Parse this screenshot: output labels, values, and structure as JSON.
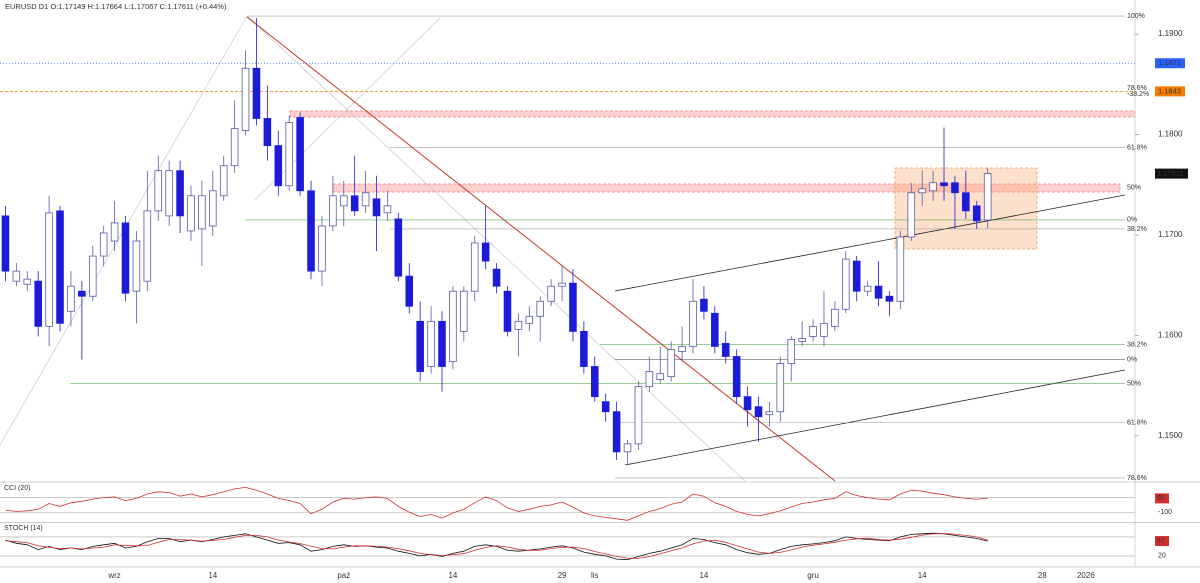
{
  "chart_data": {
    "type": "candlestick",
    "title": "EURUSD D1 O:1.17149 H:1.17664 L:1.17067 C:1.17611 (+0.44%)",
    "categories": [
      null,
      null,
      null,
      null,
      null,
      null,
      null,
      null,
      null,
      null,
      "wrz",
      null,
      null,
      null,
      null,
      null,
      null,
      null,
      null,
      "14",
      null,
      null,
      null,
      null,
      null,
      null,
      null,
      null,
      null,
      null,
      null,
      "paź",
      null,
      null,
      null,
      null,
      null,
      null,
      null,
      null,
      null,
      "14",
      null,
      null,
      null,
      null,
      null,
      null,
      null,
      null,
      null,
      "29",
      null,
      null,
      "lis",
      null,
      null,
      null,
      null,
      null,
      null,
      null,
      null,
      null,
      "14",
      null,
      null,
      null,
      null,
      null,
      null,
      null,
      null,
      null,
      "gru",
      null,
      null,
      null,
      null,
      null,
      null,
      null,
      null,
      null,
      "14",
      null,
      null,
      null,
      null,
      null,
      null,
      null,
      null,
      null,
      null,
      "28",
      null,
      null,
      null,
      "2026",
      null,
      null,
      null,
      null
    ],
    "open": [
      1.1719,
      1.1654,
      1.1651,
      1.1654,
      1.1609,
      1.1724,
      1.1624,
      1.1644,
      1.1639,
      1.1679,
      1.1694,
      1.1712,
      1.1644,
      1.1654,
      1.1724,
      1.1719,
      1.1764,
      1.1704,
      1.1706,
      1.1709,
      1.1739,
      1.1769,
      1.1804,
      1.1866,
      1.1816,
      1.1789,
      1.1749,
      1.1817,
      1.1744,
      1.1664,
      1.1709,
      1.1729,
      1.1739,
      1.1729,
      1.1736,
      1.1722,
      1.1716,
      1.1659,
      1.1614,
      1.1569,
      1.1614,
      1.1574,
      1.1604,
      1.1644,
      1.1692,
      1.1666,
      1.1644,
      1.1606,
      1.1612,
      1.1619,
      1.1634,
      1.1649,
      1.1652,
      1.1604,
      1.1569,
      1.1534,
      1.1524,
      1.1484,
      1.1492,
      1.1549,
      1.1556,
      1.1559,
      1.1584,
      1.1589,
      1.1636,
      1.1622,
      1.1592,
      1.1579,
      1.1539,
      1.1529,
      1.1521,
      1.1524,
      1.1572,
      1.1594,
      1.1599,
      1.1599,
      1.1609,
      1.1626,
      1.1674,
      1.1644,
      1.1649,
      1.1639,
      1.1634,
      1.1698,
      1.1742,
      1.1744,
      1.1752,
      1.1752,
      1.1742,
      1.1729,
      1.17149,
      null,
      null,
      null,
      null,
      null,
      null,
      null,
      null,
      null,
      null,
      null,
      null,
      null
    ],
    "high": [
      1.1729,
      1.1672,
      1.1664,
      1.1664,
      1.1739,
      1.1729,
      1.1664,
      1.1654,
      1.1689,
      1.1709,
      1.1734,
      1.1719,
      1.1704,
      1.1764,
      1.1779,
      1.1774,
      1.1774,
      1.1749,
      1.1754,
      1.1764,
      1.1779,
      1.1834,
      1.1884,
      1.1916,
      1.1849,
      1.1804,
      1.1819,
      1.1822,
      1.1754,
      1.1719,
      1.1759,
      1.1754,
      1.1779,
      1.1764,
      1.1759,
      1.1744,
      1.1722,
      1.1672,
      1.1634,
      1.1629,
      1.1624,
      1.1649,
      1.1649,
      1.1699,
      1.1729,
      1.1672,
      1.1649,
      1.1622,
      1.1629,
      1.1639,
      1.1656,
      1.1669,
      1.1666,
      1.1614,
      1.1579,
      1.1542,
      1.1534,
      1.1496,
      1.1554,
      1.1579,
      1.1589,
      1.1594,
      1.1609,
      1.1656,
      1.1649,
      1.1629,
      1.1604,
      1.1586,
      1.1549,
      1.1539,
      1.1534,
      1.1579,
      1.1599,
      1.1614,
      1.1616,
      1.1644,
      1.1634,
      1.1684,
      1.1679,
      1.1654,
      1.1674,
      1.1644,
      1.1704,
      1.1752,
      1.1764,
      1.1764,
      1.1807,
      1.1759,
      1.1764,
      1.1734,
      1.17664,
      null,
      null,
      null,
      null,
      null,
      null,
      null,
      null,
      null,
      null,
      null,
      null,
      null
    ],
    "low": [
      1.1654,
      1.1649,
      1.1644,
      1.1599,
      1.1589,
      1.1604,
      1.1609,
      1.1576,
      1.1634,
      1.1669,
      1.1684,
      1.1634,
      1.1612,
      1.1644,
      1.1714,
      1.1709,
      1.1702,
      1.1694,
      1.1669,
      1.1699,
      1.1734,
      1.1762,
      1.1799,
      1.1809,
      1.1774,
      1.1739,
      1.1744,
      1.1739,
      1.1656,
      1.1649,
      1.1704,
      1.1709,
      1.1719,
      1.1722,
      1.1684,
      1.1714,
      1.1654,
      1.1622,
      1.1554,
      1.1562,
      1.1544,
      1.1566,
      1.1594,
      1.1634,
      1.1666,
      1.1642,
      1.1599,
      1.1579,
      1.1604,
      1.1594,
      1.1629,
      1.1634,
      1.1594,
      1.1562,
      1.1534,
      1.1514,
      1.1476,
      1.1472,
      1.1486,
      1.1544,
      1.1552,
      1.1554,
      1.1574,
      1.1582,
      1.1616,
      1.1582,
      1.1572,
      1.1532,
      1.1509,
      1.1494,
      1.1509,
      1.1514,
      1.1554,
      1.1589,
      1.1594,
      1.1589,
      1.1604,
      1.1622,
      1.1634,
      1.1639,
      1.1629,
      1.1619,
      1.1626,
      1.1694,
      1.1729,
      1.1734,
      1.1734,
      1.1706,
      1.1716,
      1.1706,
      1.17067,
      null,
      null,
      null,
      null,
      null,
      null,
      null,
      null,
      null,
      null,
      null,
      null,
      null
    ],
    "close": [
      1.1664,
      1.1664,
      1.1656,
      1.1609,
      1.1722,
      1.1612,
      1.1649,
      1.1639,
      1.1679,
      1.1702,
      1.1712,
      1.1642,
      1.1694,
      1.1724,
      1.1764,
      1.1764,
      1.1719,
      1.1739,
      1.1739,
      1.1744,
      1.1769,
      1.1806,
      1.1866,
      1.1816,
      1.1789,
      1.1749,
      1.1812,
      1.1744,
      1.1664,
      1.1709,
      1.1739,
      1.1739,
      1.1724,
      1.1742,
      1.1719,
      1.1729,
      1.1659,
      1.1629,
      1.1564,
      1.1614,
      1.1569,
      1.1644,
      1.1644,
      1.1692,
      1.1674,
      1.1649,
      1.1604,
      1.1614,
      1.1619,
      1.1634,
      1.1649,
      1.1652,
      1.1604,
      1.1569,
      1.1539,
      1.1524,
      1.1484,
      1.1492,
      1.1549,
      1.1564,
      1.1562,
      1.1586,
      1.1589,
      1.1634,
      1.1624,
      1.1589,
      1.1579,
      1.1539,
      1.1526,
      1.1519,
      1.1524,
      1.1572,
      1.1596,
      1.1597,
      1.1609,
      1.1612,
      1.1626,
      1.1676,
      1.1644,
      1.1649,
      1.1637,
      1.1634,
      1.1698,
      1.1742,
      1.1746,
      1.1752,
      1.1749,
      1.1742,
      1.1724,
      1.1714,
      1.17611,
      null,
      null,
      null,
      null,
      null,
      null,
      null,
      null,
      null,
      null,
      null,
      null,
      null
    ],
    "up_color": "#ffffff",
    "up_outline": "#5a5aa8",
    "down_color": "#1c1cd8",
    "ylim": [
      1.1455,
      1.193
    ],
    "yticks": [
      {
        "value": 1.19,
        "label": "1.1900"
      },
      {
        "value": 1.18,
        "label": "1.1800"
      },
      {
        "value": 1.17,
        "label": "1.1700"
      },
      {
        "value": 1.16,
        "label": "1.1600"
      },
      {
        "value": 1.15,
        "label": "1.1500"
      }
    ],
    "price_tags": [
      {
        "value": 1.1871,
        "color": "#2962ff"
      },
      {
        "value": 1.1843,
        "color": "#f57c00"
      }
    ],
    "last_tag_color": "#111111",
    "fib_levels": [
      {
        "label": "100%",
        "value": 1.1918,
        "color": "#888888"
      },
      {
        "label": "78.6%",
        "value": 1.1846,
        "color": "#888888"
      },
      {
        "label": "-38.2%",
        "value": 1.184,
        "color": "#2e9e2e"
      },
      {
        "label": "61.8%",
        "value": 1.1787,
        "color": "#888888"
      },
      {
        "label": "50%",
        "value": 1.1747,
        "color": "#888888"
      },
      {
        "label": "0%",
        "value": 1.1715,
        "color": "#2e9e2e"
      },
      {
        "label": "38.2%",
        "value": 1.1706,
        "color": "#888888"
      },
      {
        "label": "38.2%",
        "value": 1.1591,
        "color": "#2e9e2e"
      },
      {
        "label": "0%",
        "value": 1.1576,
        "color": "#111111"
      },
      {
        "label": "50%",
        "value": 1.1552,
        "color": "#2e9e2e"
      },
      {
        "label": "61.8%",
        "value": 1.1513,
        "color": "#888888"
      },
      {
        "label": "78.6%",
        "value": 1.1458,
        "color": "#888888"
      }
    ],
    "indicators": [
      {
        "name": "CCI (20)",
        "ylim": [
          -220,
          287
        ],
        "levels": [
          100,
          -100
        ],
        "yticks": [
          -100
        ],
        "tag_color": "#d32f2f",
        "series": [
          {
            "color": "#d32f2f",
            "values": [
              -70,
              -90,
              -80,
              -60,
              20,
              -20,
              30,
              50,
              80,
              100,
              110,
              60,
              90,
              150,
              180,
              170,
              120,
              150,
              110,
              140,
              180,
              220,
              240,
              200,
              150,
              90,
              60,
              20,
              -120,
              -60,
              40,
              90,
              80,
              100,
              110,
              90,
              -20,
              -100,
              -160,
              -130,
              -180,
              -110,
              -60,
              30,
              110,
              60,
              -40,
              -90,
              -60,
              -20,
              0,
              40,
              -30,
              -110,
              -150,
              -170,
              -190,
              -210,
              -150,
              -90,
              -50,
              10,
              40,
              150,
              120,
              30,
              -20,
              -90,
              -130,
              -150,
              -120,
              -80,
              -30,
              20,
              40,
              70,
              90,
              180,
              130,
              100,
              80,
              70,
              150,
              200,
              190,
              160,
              140,
              110,
              90,
              80,
              90,
              null,
              null,
              null,
              null,
              null,
              null,
              null,
              null,
              null,
              null,
              null,
              null,
              null
            ]
          }
        ]
      },
      {
        "name": "STOCH (14)",
        "ylim": [
          -12,
          121
        ],
        "levels": [
          80,
          20
        ],
        "yticks": [
          20
        ],
        "tag_color": "#d32f2f",
        "series": [
          {
            "color": "#111111",
            "values": [
              70,
              60,
              55,
              40,
              50,
              40,
              45,
              40,
              50,
              55,
              60,
              45,
              50,
              65,
              75,
              75,
              65,
              70,
              65,
              72,
              80,
              85,
              90,
              80,
              70,
              60,
              62,
              55,
              35,
              40,
              50,
              55,
              50,
              52,
              48,
              45,
              35,
              28,
              20,
              25,
              18,
              28,
              35,
              50,
              55,
              50,
              38,
              35,
              38,
              42,
              48,
              52,
              45,
              32,
              25,
              20,
              10,
              8,
              18,
              28,
              35,
              45,
              55,
              75,
              72,
              62,
              55,
              40,
              30,
              25,
              28,
              40,
              50,
              55,
              58,
              62,
              68,
              80,
              75,
              72,
              70,
              68,
              80,
              88,
              90,
              92,
              90,
              85,
              80,
              75,
              67,
              null,
              null,
              null,
              null,
              null,
              null,
              null,
              null,
              null,
              null,
              null,
              null,
              null
            ]
          },
          {
            "color": "#d32f2f",
            "values": [
              68,
              65,
              62,
              52,
              48,
              43,
              45,
              42,
              45,
              48,
              55,
              53,
              52,
              53,
              63,
              72,
              72,
              70,
              67,
              69,
              72,
              79,
              85,
              85,
              80,
              70,
              64,
              59,
              51,
              43,
              42,
              48,
              52,
              52,
              50,
              48,
              43,
              36,
              28,
              24,
              21,
              24,
              27,
              38,
              47,
              52,
              48,
              41,
              37,
              38,
              43,
              47,
              48,
              43,
              34,
              26,
              18,
              13,
              12,
              18,
              27,
              36,
              45,
              58,
              67,
              70,
              63,
              52,
              42,
              32,
              28,
              31,
              39,
              48,
              54,
              58,
              63,
              70,
              74,
              76,
              72,
              70,
              73,
              79,
              86,
              90,
              91,
              89,
              85,
              80,
              70,
              null,
              null,
              null,
              null,
              null,
              null,
              null,
              null,
              null,
              null,
              null,
              null,
              null
            ]
          }
        ]
      }
    ]
  }
}
